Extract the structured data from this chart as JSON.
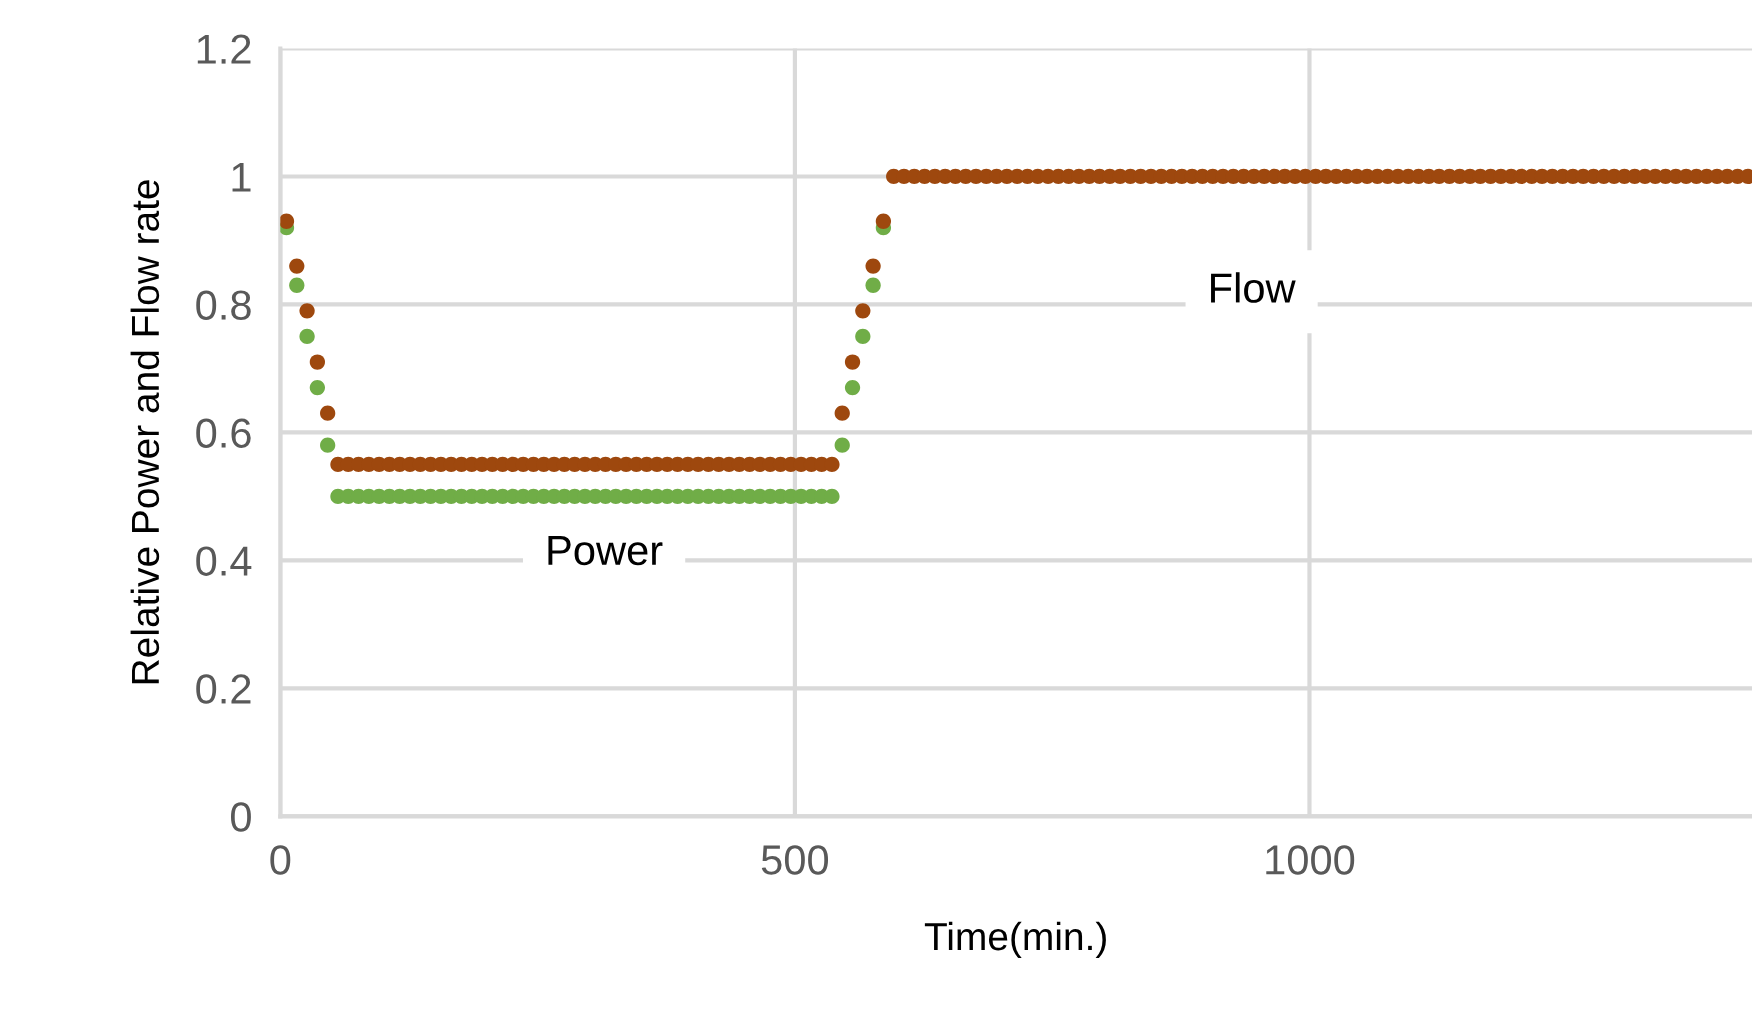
{
  "chart_data": {
    "type": "scatter",
    "xlabel": "Time(min.)",
    "ylabel": "Relative Power and Flow rate",
    "xlim": [
      0,
      1430
    ],
    "xticks": [
      0,
      500,
      1000
    ],
    "ylim": [
      0,
      1.2
    ],
    "yticks": [
      0,
      0.2,
      0.4,
      0.6,
      0.8,
      1,
      1.2
    ],
    "grid": true,
    "legend": false,
    "marker": "circle",
    "series": [
      {
        "name": "Power",
        "color": "#70ad47",
        "x": [
          6,
          16,
          26,
          36,
          46,
          56,
          66,
          76,
          86,
          96,
          106,
          116,
          126,
          136,
          146,
          156,
          166,
          176,
          186,
          196,
          206,
          216,
          226,
          236,
          246,
          256,
          266,
          276,
          286,
          296,
          306,
          316,
          326,
          336,
          346,
          356,
          366,
          376,
          386,
          396,
          406,
          416,
          426,
          436,
          446,
          456,
          466,
          476,
          486,
          496,
          506,
          516,
          526,
          536,
          546,
          556,
          566,
          576,
          586
        ],
        "values": [
          0.92,
          0.83,
          0.75,
          0.67,
          0.58,
          0.5,
          0.5,
          0.5,
          0.5,
          0.5,
          0.5,
          0.5,
          0.5,
          0.5,
          0.5,
          0.5,
          0.5,
          0.5,
          0.5,
          0.5,
          0.5,
          0.5,
          0.5,
          0.5,
          0.5,
          0.5,
          0.5,
          0.5,
          0.5,
          0.5,
          0.5,
          0.5,
          0.5,
          0.5,
          0.5,
          0.5,
          0.5,
          0.5,
          0.5,
          0.5,
          0.5,
          0.5,
          0.5,
          0.5,
          0.5,
          0.5,
          0.5,
          0.5,
          0.5,
          0.5,
          0.5,
          0.5,
          0.5,
          0.5,
          0.58,
          0.67,
          0.75,
          0.83,
          0.92
        ]
      },
      {
        "name": "Flow",
        "color": "#9e480e",
        "x": [
          6,
          16,
          26,
          36,
          46,
          56,
          66,
          76,
          86,
          96,
          106,
          116,
          126,
          136,
          146,
          156,
          166,
          176,
          186,
          196,
          206,
          216,
          226,
          236,
          246,
          256,
          266,
          276,
          286,
          296,
          306,
          316,
          326,
          336,
          346,
          356,
          366,
          376,
          386,
          396,
          406,
          416,
          426,
          436,
          446,
          456,
          466,
          476,
          486,
          496,
          506,
          516,
          526,
          536,
          546,
          556,
          566,
          576,
          586,
          596,
          606,
          616,
          626,
          636,
          646,
          656,
          666,
          676,
          686,
          696,
          706,
          716,
          726,
          736,
          746,
          756,
          766,
          776,
          786,
          796,
          806,
          816,
          826,
          836,
          846,
          856,
          866,
          876,
          886,
          896,
          906,
          916,
          926,
          936,
          946,
          956,
          966,
          976,
          986,
          996,
          1006,
          1016,
          1026,
          1036,
          1046,
          1056,
          1066,
          1076,
          1086,
          1096,
          1106,
          1116,
          1126,
          1136,
          1146,
          1156,
          1166,
          1176,
          1186,
          1196,
          1206,
          1216,
          1226,
          1236,
          1246,
          1256,
          1266,
          1276,
          1286,
          1296,
          1306,
          1316,
          1326,
          1336,
          1346,
          1356,
          1366,
          1376,
          1386,
          1396,
          1406,
          1416,
          1426
        ],
        "values": [
          0.93,
          0.86,
          0.79,
          0.71,
          0.63,
          0.55,
          0.55,
          0.55,
          0.55,
          0.55,
          0.55,
          0.55,
          0.55,
          0.55,
          0.55,
          0.55,
          0.55,
          0.55,
          0.55,
          0.55,
          0.55,
          0.55,
          0.55,
          0.55,
          0.55,
          0.55,
          0.55,
          0.55,
          0.55,
          0.55,
          0.55,
          0.55,
          0.55,
          0.55,
          0.55,
          0.55,
          0.55,
          0.55,
          0.55,
          0.55,
          0.55,
          0.55,
          0.55,
          0.55,
          0.55,
          0.55,
          0.55,
          0.55,
          0.55,
          0.55,
          0.55,
          0.55,
          0.55,
          0.55,
          0.63,
          0.71,
          0.79,
          0.86,
          0.93,
          1,
          1,
          1,
          1,
          1,
          1,
          1,
          1,
          1,
          1,
          1,
          1,
          1,
          1,
          1,
          1,
          1,
          1,
          1,
          1,
          1,
          1,
          1,
          1,
          1,
          1,
          1,
          1,
          1,
          1,
          1,
          1,
          1,
          1,
          1,
          1,
          1,
          1,
          1,
          1,
          1,
          1,
          1,
          1,
          1,
          1,
          1,
          1,
          1,
          1,
          1,
          1,
          1,
          1,
          1,
          1,
          1,
          1,
          1,
          1,
          1,
          1,
          1,
          1,
          1,
          1,
          1,
          1,
          1,
          1,
          1,
          1,
          1,
          1,
          1,
          1,
          1,
          1,
          1,
          1,
          1,
          1,
          1,
          1
        ]
      }
    ]
  }
}
